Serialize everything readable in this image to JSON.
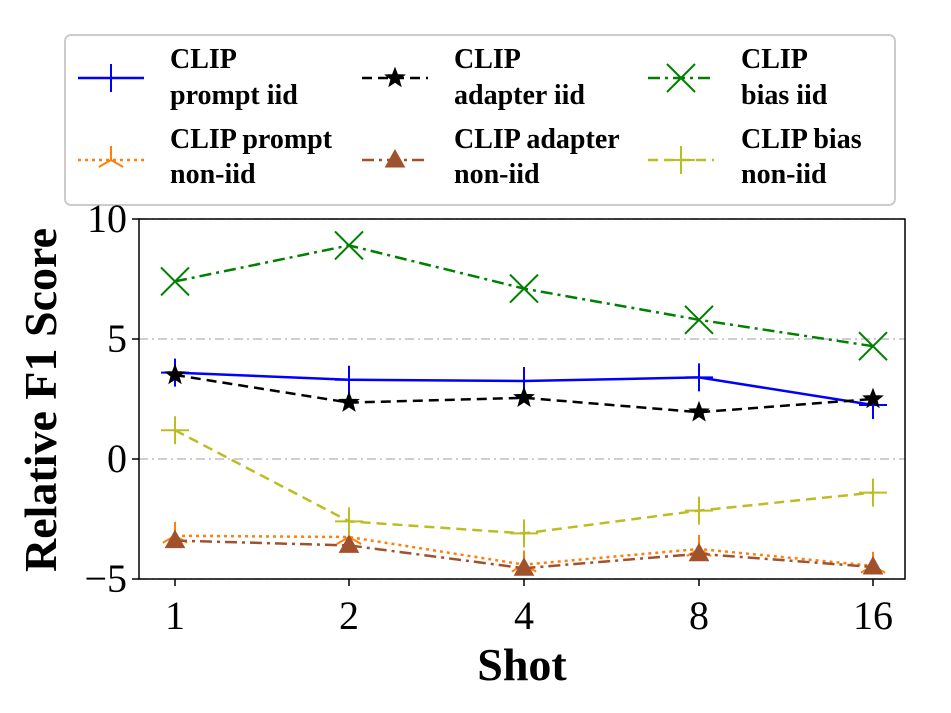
{
  "chart_data": {
    "type": "line",
    "title": "",
    "xlabel": "Shot",
    "ylabel": "Relative F1 Score",
    "categories": [
      "1",
      "2",
      "4",
      "8",
      "16"
    ],
    "ylim": [
      -5,
      10
    ],
    "yticks": [
      -5,
      0,
      5,
      10
    ],
    "ytick_labels": [
      "−5",
      "0",
      "5",
      "10"
    ],
    "grid": "horizontal dash-dot",
    "legend_position": "top",
    "series": [
      {
        "name": "CLIP prompt iid",
        "legend_lines": [
          "CLIP",
          "prompt iid"
        ],
        "values": [
          3.6,
          3.3,
          3.25,
          3.4,
          2.25
        ],
        "color": "#0000ff",
        "line": "solid",
        "marker": "plus"
      },
      {
        "name": "CLIP adapter iid",
        "legend_lines": [
          "CLIP",
          "adapter iid"
        ],
        "values": [
          3.5,
          2.35,
          2.55,
          1.95,
          2.5
        ],
        "color": "#000000",
        "line": "dashed",
        "marker": "star"
      },
      {
        "name": "CLIP bias iid",
        "legend_lines": [
          "CLIP",
          "bias iid"
        ],
        "values": [
          7.4,
          8.9,
          7.1,
          5.8,
          4.7
        ],
        "color": "#008000",
        "line": "dashdot",
        "marker": "x"
      },
      {
        "name": "CLIP prompt non-iid",
        "legend_lines": [
          "CLIP prompt",
          "non-iid"
        ],
        "values": [
          -3.2,
          -3.25,
          -4.4,
          -3.75,
          -4.45
        ],
        "color": "#ff7f0e",
        "line": "dotted",
        "marker": "tri-down"
      },
      {
        "name": "CLIP adapter non-iid",
        "legend_lines": [
          "CLIP adapter",
          "non-iid"
        ],
        "values": [
          -3.4,
          -3.6,
          -4.55,
          -3.95,
          -4.5
        ],
        "color": "#a0522d",
        "line": "dashdot",
        "marker": "triangle-up"
      },
      {
        "name": "CLIP bias non-iid",
        "legend_lines": [
          "CLIP bias",
          "non-iid"
        ],
        "values": [
          1.2,
          -2.6,
          -3.1,
          -2.15,
          -1.4
        ],
        "color": "#bcbd22",
        "line": "dashed",
        "marker": "plus"
      }
    ]
  }
}
